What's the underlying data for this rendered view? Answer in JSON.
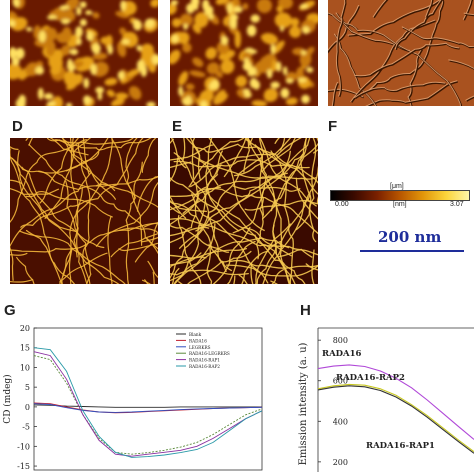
{
  "figure": {
    "panels": {
      "A": {
        "letter": "",
        "kind": "granular"
      },
      "B": {
        "letter": "",
        "kind": "granular"
      },
      "C": {
        "letter": "",
        "kind": "fibers-derivative"
      },
      "D": {
        "letter": "D",
        "kind": "fibers"
      },
      "E": {
        "letter": "E",
        "kind": "fibers-dense"
      },
      "F": {
        "letter": "F"
      },
      "G": {
        "letter": "G"
      },
      "H": {
        "letter": "H"
      }
    },
    "colorbar": {
      "unit_top": "[μm]",
      "unit_mid": "[nm]",
      "min_label": "0.00",
      "max_label": "3.07",
      "colors": [
        "#000000",
        "#3a0a00",
        "#7a2000",
        "#b85600",
        "#e2960a",
        "#fbd43a",
        "#fff6a8"
      ]
    },
    "scalebar": {
      "label": "200 nm",
      "color": "#1e2d9a"
    }
  },
  "chart_data": [
    {
      "type": "line",
      "panel": "G",
      "title": "",
      "xlabel": "",
      "ylabel": "CD (mdeg)",
      "yticks": [
        "20",
        "15",
        "10",
        "5",
        "0",
        "-5",
        "-10",
        "-15"
      ],
      "ylim": [
        -16,
        20
      ],
      "xlim": [
        190,
        260
      ],
      "legend": [
        "Blank",
        "RADA16",
        "LEGRKRS",
        "RADA16-LEGRKRS",
        "RADA16-RAP1",
        "RADA16-RAP2"
      ],
      "series": [
        {
          "name": "Blank",
          "color": "#2a2a2a",
          "x": [
            190,
            195,
            200,
            205,
            210,
            215,
            220,
            225,
            230,
            235,
            240,
            245,
            250,
            255,
            260
          ],
          "y": [
            0.5,
            0.4,
            0.2,
            0.1,
            0,
            -0.1,
            -0.1,
            -0.1,
            -0.1,
            0,
            0,
            0,
            0,
            0,
            0
          ]
        },
        {
          "name": "RADA16",
          "color": "#c02030",
          "x": [
            190,
            195,
            200,
            205,
            210,
            215,
            220,
            225,
            230,
            235,
            240,
            245,
            250,
            255,
            260
          ],
          "y": [
            1,
            0.8,
            0,
            -0.8,
            -1.3,
            -1.5,
            -1.4,
            -1.2,
            -1,
            -0.8,
            -0.6,
            -0.4,
            -0.3,
            -0.2,
            -0.1
          ]
        },
        {
          "name": "LEGRKRS",
          "color": "#3050c0",
          "x": [
            190,
            195,
            200,
            205,
            210,
            215,
            220,
            225,
            230,
            235,
            240,
            245,
            250,
            255,
            260
          ],
          "y": [
            0.8,
            0.6,
            -0.2,
            -0.9,
            -1.3,
            -1.4,
            -1.3,
            -1.1,
            -0.9,
            -0.7,
            -0.5,
            -0.4,
            -0.3,
            -0.2,
            -0.1
          ]
        },
        {
          "name": "RADA16-LEGRKRS",
          "color": "#5a8a3a",
          "x": [
            190,
            195,
            200,
            205,
            210,
            215,
            220,
            225,
            230,
            235,
            240,
            245,
            250,
            255,
            260
          ],
          "y": [
            13,
            12,
            6,
            -2,
            -8,
            -11.5,
            -12,
            -11.6,
            -11,
            -10.2,
            -9,
            -7,
            -4.5,
            -2,
            -0.5
          ]
        },
        {
          "name": "RADA16-RAP1",
          "color": "#8a2fa0",
          "x": [
            190,
            195,
            200,
            205,
            210,
            215,
            220,
            225,
            230,
            235,
            240,
            245,
            250,
            255,
            260
          ],
          "y": [
            14,
            13,
            7,
            -2,
            -8.5,
            -12,
            -12.5,
            -12,
            -11.5,
            -11,
            -10,
            -8,
            -5.5,
            -3,
            -1
          ]
        },
        {
          "name": "RADA16-RAP2",
          "color": "#2a9aa8",
          "x": [
            190,
            195,
            200,
            205,
            210,
            215,
            220,
            225,
            230,
            235,
            240,
            245,
            250,
            255,
            260
          ],
          "y": [
            15,
            14.5,
            9,
            -1,
            -7.5,
            -11.5,
            -12.8,
            -12.6,
            -12.2,
            -11.6,
            -10.8,
            -9,
            -6,
            -3,
            -1
          ]
        }
      ]
    },
    {
      "type": "line",
      "panel": "H",
      "title": "",
      "xlabel": "",
      "ylabel": "Emission intensity (a. u)",
      "yticks": [
        "800",
        "600",
        "400",
        "200"
      ],
      "ylim": [
        150,
        860
      ],
      "xlim": [
        0,
        10
      ],
      "annotations": [
        "RADA16",
        "RADA16-RAP2",
        "RADA16-RAP1"
      ],
      "series": [
        {
          "name": "RADA16",
          "color": "#b048d8",
          "x": [
            0,
            1,
            2,
            3,
            4,
            5,
            6,
            7,
            8,
            9,
            10
          ],
          "y": [
            660,
            672,
            678,
            670,
            648,
            612,
            565,
            505,
            440,
            375,
            310
          ]
        },
        {
          "name": "RADA16-RAP2",
          "color": "#c8c820",
          "x": [
            0,
            1,
            2,
            3,
            4,
            5,
            6,
            7,
            8,
            9,
            10
          ],
          "y": [
            560,
            575,
            582,
            578,
            560,
            528,
            482,
            428,
            368,
            308,
            250
          ]
        },
        {
          "name": "RADA16-RAP1",
          "color": "#333333",
          "x": [
            0,
            1,
            2,
            3,
            4,
            5,
            6,
            7,
            8,
            9,
            10
          ],
          "y": [
            555,
            568,
            575,
            570,
            552,
            520,
            475,
            420,
            360,
            300,
            242
          ]
        }
      ]
    }
  ]
}
